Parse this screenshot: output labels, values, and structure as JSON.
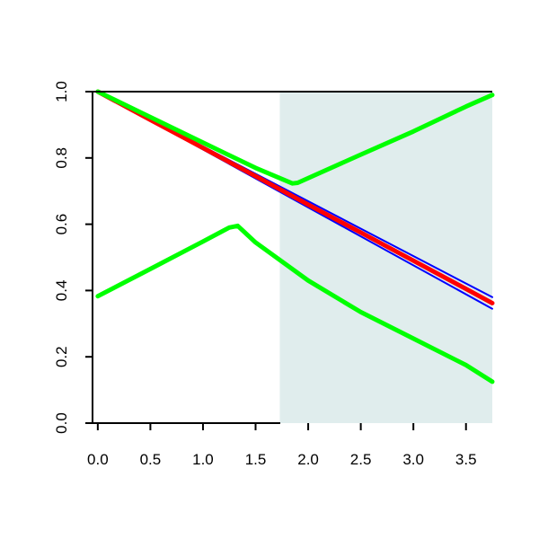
{
  "chart_data": {
    "type": "line",
    "title": "",
    "xlabel": "",
    "ylabel": "",
    "xlim": [
      -0.05,
      3.75
    ],
    "ylim": [
      0.0,
      1.0
    ],
    "x_ticks": [
      0.0,
      0.5,
      1.0,
      1.5,
      2.0,
      2.5,
      3.0,
      3.5
    ],
    "x_tick_labels": [
      "0.0",
      "0.5",
      "1.0",
      "1.5",
      "2.0",
      "2.5",
      "3.0",
      "3.5"
    ],
    "y_ticks": [
      0.0,
      0.2,
      0.4,
      0.6,
      0.8,
      1.0
    ],
    "y_tick_labels": [
      "0.0",
      "0.2",
      "0.4",
      "0.6",
      "0.8",
      "1.0"
    ],
    "grid": false,
    "shaded_region": {
      "x_start": 1.73,
      "x_end": 3.75,
      "color": "#e0eded"
    },
    "series": [
      {
        "color": "#0000ff",
        "line_width": 2,
        "x": [
          0.0,
          3.75
        ],
        "y": [
          1.0,
          0.38
        ]
      },
      {
        "color": "#0000ff",
        "line_width": 2,
        "x": [
          0.0,
          3.75
        ],
        "y": [
          1.0,
          0.345
        ]
      },
      {
        "color": "#ff0000",
        "line_width": 5,
        "x": [
          0.0,
          0.5,
          1.0,
          1.5,
          2.0,
          2.5,
          3.0,
          3.5,
          3.75
        ],
        "y": [
          1.0,
          0.915,
          0.83,
          0.745,
          0.659,
          0.575,
          0.49,
          0.405,
          0.362
        ]
      },
      {
        "color": "#00ff00",
        "line_width": 5,
        "x": [
          0.0,
          0.5,
          1.0,
          1.5,
          1.85,
          1.9,
          2.5,
          3.0,
          3.5,
          3.75
        ],
        "y": [
          1.0,
          0.923,
          0.846,
          0.77,
          0.723,
          0.725,
          0.81,
          0.88,
          0.955,
          0.99
        ]
      },
      {
        "color": "#00ff00",
        "line_width": 5,
        "x": [
          0.0,
          0.5,
          1.0,
          1.25,
          1.33,
          1.5,
          2.0,
          2.5,
          3.0,
          3.5,
          3.75
        ],
        "y": [
          0.383,
          0.465,
          0.548,
          0.59,
          0.595,
          0.545,
          0.43,
          0.335,
          0.255,
          0.175,
          0.125
        ]
      }
    ]
  }
}
